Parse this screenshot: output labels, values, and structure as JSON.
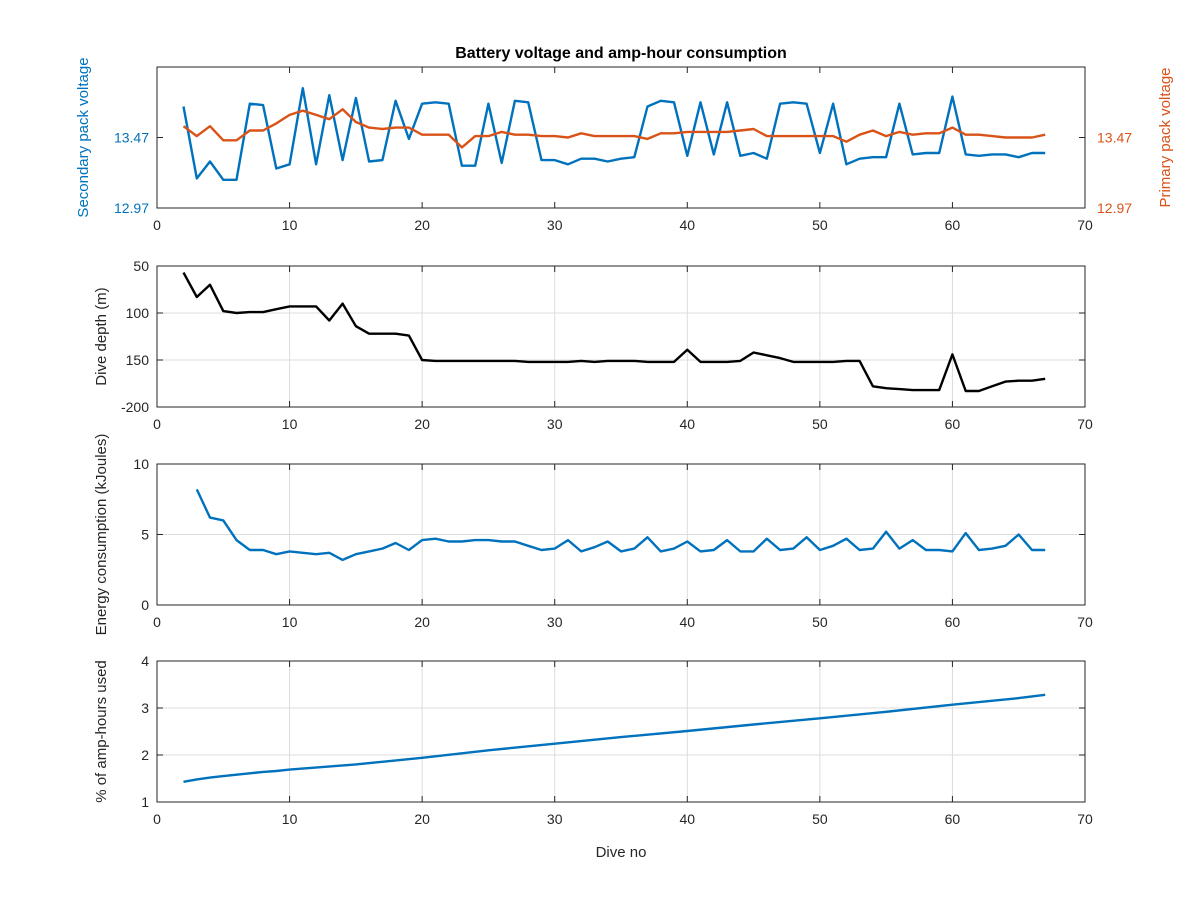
{
  "chart_data": [
    {
      "type": "line",
      "title": "Battery voltage and amp-hour consumption",
      "xlabel": "",
      "xlim": [
        0,
        70
      ],
      "xticks": [
        0,
        10,
        20,
        30,
        40,
        50,
        60,
        70
      ],
      "grid": false,
      "y_left": {
        "label": "Secondary pack voltage",
        "color": "#0072BD",
        "ylim": [
          12.97,
          13.97
        ],
        "ytick_values": [
          12.97,
          13.47
        ],
        "ytick_labels": [
          "12.97",
          "13.47"
        ]
      },
      "y_right": {
        "label": "Primary pack voltage",
        "color": "#D95319",
        "ylim": [
          12.97,
          13.97
        ],
        "ytick_values": [
          12.97,
          13.47
        ],
        "ytick_labels": [
          "12.97",
          "13.47"
        ]
      },
      "series": [
        {
          "axis": "left",
          "color": "#0072BD",
          "x": [
            2,
            3,
            4,
            5,
            6,
            7,
            8,
            9,
            10,
            11,
            12,
            13,
            14,
            15,
            16,
            17,
            18,
            19,
            20,
            21,
            22,
            23,
            24,
            25,
            26,
            27,
            28,
            29,
            30,
            31,
            32,
            33,
            34,
            35,
            36,
            37,
            38,
            39,
            40,
            41,
            42,
            43,
            44,
            45,
            46,
            47,
            48,
            49,
            50,
            51,
            52,
            53,
            54,
            55,
            56,
            57,
            58,
            59,
            60,
            61,
            62,
            63,
            64,
            65,
            66,
            67
          ],
          "y": [
            13.69,
            13.18,
            13.3,
            13.17,
            13.17,
            13.71,
            13.7,
            13.25,
            13.28,
            13.82,
            13.28,
            13.77,
            13.31,
            13.75,
            13.3,
            13.31,
            13.73,
            13.46,
            13.71,
            13.72,
            13.71,
            13.27,
            13.27,
            13.71,
            13.29,
            13.73,
            13.72,
            13.31,
            13.31,
            13.28,
            13.32,
            13.32,
            13.3,
            13.32,
            13.33,
            13.69,
            13.73,
            13.72,
            13.34,
            13.72,
            13.35,
            13.72,
            13.34,
            13.36,
            13.32,
            13.71,
            13.72,
            13.71,
            13.36,
            13.71,
            13.28,
            13.32,
            13.33,
            13.33,
            13.71,
            13.35,
            13.36,
            13.36,
            13.76,
            13.35,
            13.34,
            13.35,
            13.35,
            13.33,
            13.36,
            13.36
          ]
        },
        {
          "axis": "right",
          "color": "#D95319",
          "x": [
            2,
            3,
            4,
            5,
            6,
            7,
            8,
            9,
            10,
            11,
            12,
            13,
            14,
            15,
            16,
            17,
            18,
            19,
            20,
            21,
            22,
            23,
            24,
            25,
            26,
            27,
            28,
            29,
            30,
            31,
            32,
            33,
            34,
            35,
            36,
            37,
            38,
            39,
            40,
            41,
            42,
            43,
            44,
            45,
            46,
            47,
            48,
            49,
            50,
            51,
            52,
            53,
            54,
            55,
            56,
            57,
            58,
            59,
            60,
            61,
            62,
            63,
            64,
            65,
            66,
            67
          ],
          "y": [
            13.55,
            13.48,
            13.55,
            13.45,
            13.45,
            13.52,
            13.52,
            13.57,
            13.63,
            13.66,
            13.63,
            13.6,
            13.67,
            13.58,
            13.54,
            13.53,
            13.54,
            13.54,
            13.49,
            13.49,
            13.49,
            13.4,
            13.48,
            13.48,
            13.51,
            13.49,
            13.49,
            13.48,
            13.48,
            13.47,
            13.5,
            13.48,
            13.48,
            13.48,
            13.48,
            13.46,
            13.5,
            13.5,
            13.51,
            13.51,
            13.51,
            13.51,
            13.52,
            13.53,
            13.48,
            13.48,
            13.48,
            13.48,
            13.48,
            13.48,
            13.44,
            13.49,
            13.52,
            13.48,
            13.51,
            13.49,
            13.5,
            13.5,
            13.54,
            13.49,
            13.49,
            13.48,
            13.47,
            13.47,
            13.47,
            13.49
          ]
        }
      ]
    },
    {
      "type": "line",
      "xlabel": "",
      "ylabel": "Dive depth (m)",
      "xlim": [
        0,
        70
      ],
      "xticks": [
        0,
        10,
        20,
        30,
        40,
        50,
        60,
        70
      ],
      "ylim": [
        -200,
        -50
      ],
      "ytick_values": [
        -50,
        -100,
        -150,
        -200
      ],
      "ytick_labels": [
        "50",
        "100",
        "150",
        "-200"
      ],
      "grid": true,
      "series": [
        {
          "color": "#000000",
          "x": [
            2,
            3,
            4,
            5,
            6,
            7,
            8,
            9,
            10,
            11,
            12,
            13,
            14,
            15,
            16,
            17,
            18,
            19,
            20,
            21,
            22,
            23,
            24,
            25,
            26,
            27,
            28,
            29,
            30,
            31,
            32,
            33,
            34,
            35,
            36,
            37,
            38,
            39,
            40,
            41,
            42,
            43,
            44,
            45,
            46,
            47,
            48,
            49,
            50,
            51,
            52,
            53,
            54,
            55,
            56,
            57,
            58,
            59,
            60,
            61,
            62,
            63,
            64,
            65,
            66,
            67
          ],
          "y": [
            -57,
            -83,
            -70,
            -98,
            -100,
            -99,
            -99,
            -96,
            -93,
            -93,
            -93,
            -108,
            -90,
            -114,
            -122,
            -122,
            -122,
            -124,
            -150,
            -151,
            -151,
            -151,
            -151,
            -151,
            -151,
            -151,
            -152,
            -152,
            -152,
            -152,
            -151,
            -152,
            -151,
            -151,
            -151,
            -152,
            -152,
            -152,
            -139,
            -152,
            -152,
            -152,
            -151,
            -142,
            -145,
            -148,
            -152,
            -152,
            -152,
            -152,
            -151,
            -151,
            -178,
            -180,
            -181,
            -182,
            -182,
            -182,
            -144,
            -183,
            -183,
            -178,
            -173,
            -172,
            -172,
            -170
          ]
        }
      ]
    },
    {
      "type": "line",
      "xlabel": "",
      "ylabel": "Energy consumption (kJoules)",
      "xlim": [
        0,
        70
      ],
      "xticks": [
        0,
        10,
        20,
        30,
        40,
        50,
        60,
        70
      ],
      "ylim": [
        0,
        10
      ],
      "ytick_values": [
        0,
        5,
        10
      ],
      "ytick_labels": [
        "0",
        "5",
        "10"
      ],
      "grid": true,
      "series": [
        {
          "color": "#0072BD",
          "x": [
            3,
            4,
            5,
            6,
            7,
            8,
            9,
            10,
            11,
            12,
            13,
            14,
            15,
            16,
            17,
            18,
            19,
            20,
            21,
            22,
            23,
            24,
            25,
            26,
            27,
            28,
            29,
            30,
            31,
            32,
            33,
            34,
            35,
            36,
            37,
            38,
            39,
            40,
            41,
            42,
            43,
            44,
            45,
            46,
            47,
            48,
            49,
            50,
            51,
            52,
            53,
            54,
            55,
            56,
            57,
            58,
            59,
            60,
            61,
            62,
            63,
            64,
            65,
            66,
            67
          ],
          "y": [
            8.2,
            6.2,
            6.0,
            4.6,
            3.9,
            3.9,
            3.6,
            3.8,
            3.7,
            3.6,
            3.7,
            3.2,
            3.6,
            3.8,
            4.0,
            4.4,
            3.9,
            4.6,
            4.7,
            4.5,
            4.5,
            4.6,
            4.6,
            4.5,
            4.5,
            4.2,
            3.9,
            4.0,
            4.6,
            3.8,
            4.1,
            4.5,
            3.8,
            4.0,
            4.8,
            3.8,
            4.0,
            4.5,
            3.8,
            3.9,
            4.6,
            3.8,
            3.8,
            4.7,
            3.9,
            4.0,
            4.8,
            3.9,
            4.2,
            4.7,
            3.9,
            4.0,
            5.2,
            4.0,
            4.6,
            3.9,
            3.9,
            3.8,
            5.1,
            3.9,
            4.0,
            4.2,
            5.0,
            3.9,
            3.9
          ]
        }
      ]
    },
    {
      "type": "line",
      "xlabel": "Dive no",
      "ylabel": "% of amp-hours used",
      "xlim": [
        0,
        70
      ],
      "xticks": [
        0,
        10,
        20,
        30,
        40,
        50,
        60,
        70
      ],
      "ylim": [
        1,
        4
      ],
      "ytick_values": [
        1,
        2,
        3,
        4
      ],
      "ytick_labels": [
        "1",
        "2",
        "3",
        "4"
      ],
      "grid": true,
      "series": [
        {
          "color": "#0072BD",
          "x": [
            2,
            3,
            4,
            5,
            6,
            7,
            8,
            9,
            10,
            15,
            20,
            25,
            30,
            35,
            40,
            45,
            50,
            55,
            60,
            65,
            67
          ],
          "y": [
            1.43,
            1.48,
            1.52,
            1.55,
            1.58,
            1.61,
            1.64,
            1.66,
            1.69,
            1.8,
            1.94,
            2.1,
            2.24,
            2.38,
            2.51,
            2.65,
            2.78,
            2.92,
            3.07,
            3.21,
            3.28
          ]
        }
      ]
    }
  ]
}
